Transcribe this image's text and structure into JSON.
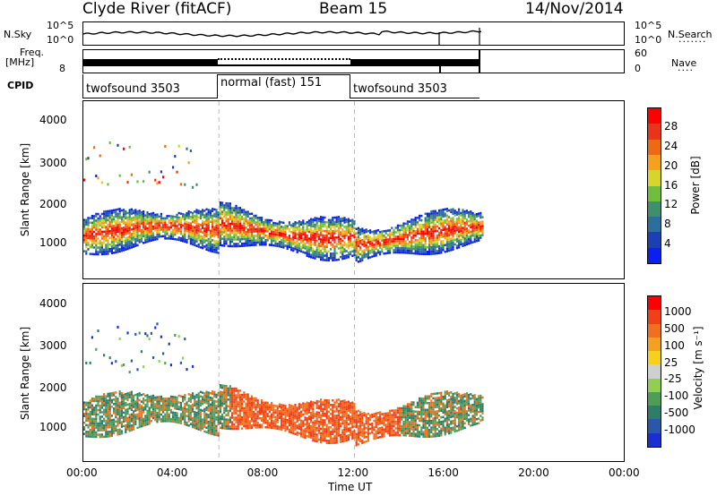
{
  "header": {
    "site": "Clyde River (fitACF)",
    "beam": "Beam 15",
    "date": "14/Nov/2014"
  },
  "sky_noise": {
    "label": "N.Sky",
    "right_label": "N.Search",
    "ticks": [
      "10^5",
      "10^0"
    ]
  },
  "frequency": {
    "label_top": "Freq.",
    "label_units": "[MHz]",
    "left_tick": "8",
    "right_ticks": [
      "60",
      "0"
    ],
    "right_label": "Nave"
  },
  "cpid": {
    "label": "CPID",
    "segments": [
      {
        "name": "twofsound 3503",
        "start_hour": 0,
        "end_hour": 6
      },
      {
        "name": "normal (fast) 151",
        "start_hour": 6,
        "end_hour": 12
      },
      {
        "name": "twofsound 3503",
        "start_hour": 12,
        "end_hour": 17.7
      }
    ]
  },
  "chart_data": [
    {
      "type": "heatmap",
      "title": "",
      "ylabel": "Slant Range [km]",
      "xlabel": "",
      "x_range_hours": [
        0,
        24
      ],
      "ylim": [
        200,
        4600
      ],
      "yticks": [
        "1000",
        "2000",
        "3000",
        "4000"
      ],
      "colorbar": {
        "label": "Power [dB]",
        "ticks": [
          "4",
          "8",
          "12",
          "16",
          "20",
          "24",
          "28"
        ],
        "colors": [
          "#0a1ff0",
          "#1b3fb5",
          "#2e6e9c",
          "#3f8f6a",
          "#6fbf3c",
          "#d7d52c",
          "#f6a020",
          "#ee6a12",
          "#e8341a",
          "#ff0000"
        ]
      }
    },
    {
      "type": "heatmap",
      "title": "",
      "ylabel": "Slant Range [km]",
      "xlabel": "Time UT",
      "x_range_hours": [
        0,
        24
      ],
      "ylim": [
        200,
        4600
      ],
      "yticks": [
        "1000",
        "2000",
        "3000",
        "4000"
      ],
      "xticks": [
        "00:00",
        "04:00",
        "08:00",
        "12:00",
        "16:00",
        "20:00",
        "00:00"
      ],
      "colorbar": {
        "label": "Velocity [m s⁻¹]",
        "ticks": [
          "1000",
          "500",
          "100",
          "25",
          "-25",
          "-100",
          "-500",
          "-1000"
        ],
        "colors": [
          "#1b2fd0",
          "#2b57a8",
          "#2e7d68",
          "#4e9e58",
          "#8fd050",
          "#cfcfcf",
          "#f5d020",
          "#f5a020",
          "#f07020",
          "#f04018",
          "#ff0000"
        ]
      }
    }
  ]
}
